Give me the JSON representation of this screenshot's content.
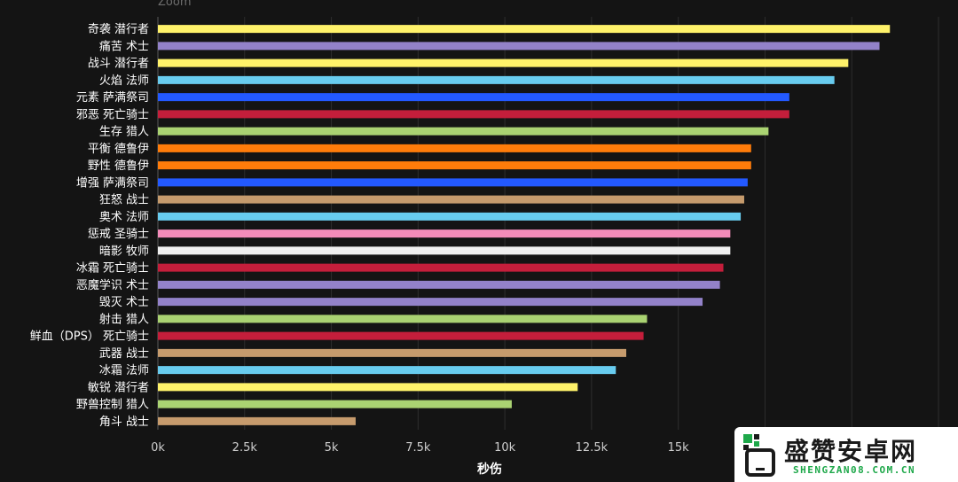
{
  "zoom_label": "Zoom",
  "watermark": {
    "title": "盛赞安卓网",
    "subtitle": "SHENGZAN08.COM.CN"
  },
  "chart_data": {
    "type": "bar",
    "orientation": "horizontal",
    "xlabel": "秒伤",
    "xlim": [
      0,
      22500
    ],
    "xticks": [
      0,
      2500,
      5000,
      7500,
      10000,
      12500,
      15000,
      17500,
      20000,
      22500
    ],
    "xtick_labels": [
      "0k",
      "2.5k",
      "5k",
      "7.5k",
      "10k",
      "12.5k",
      "15k",
      "",
      "",
      ""
    ],
    "grid": "vertical",
    "categories": [
      "奇袭 潜行者",
      "痛苦 术士",
      "战斗 潜行者",
      "火焰 法师",
      "元素 萨满祭司",
      "邪恶 死亡骑士",
      "生存 猎人",
      "平衡 德鲁伊",
      "野性 德鲁伊",
      "增强 萨满祭司",
      "狂怒 战士",
      "奥术 法师",
      "惩戒 圣骑士",
      "暗影 牧师",
      "冰霜 死亡骑士",
      "恶魔学识 术士",
      "毁灭 术士",
      "射击 猎人",
      "鲜血（DPS） 死亡骑士",
      "武器 战士",
      "冰霜 法师",
      "敏锐 潜行者",
      "野兽控制 猎人",
      "角斗 战士"
    ],
    "values": [
      21100,
      20800,
      19900,
      19500,
      18200,
      18200,
      17600,
      17100,
      17100,
      17000,
      16900,
      16800,
      16500,
      16500,
      16300,
      16200,
      15700,
      14100,
      14000,
      13500,
      13200,
      12100,
      10200,
      5700
    ],
    "colors": [
      "#fff26a",
      "#9382c9",
      "#fff26a",
      "#68ccef",
      "#2359ff",
      "#c41e3b",
      "#aad372",
      "#ff7c0a",
      "#ff7c0a",
      "#2359ff",
      "#c69b6d",
      "#68ccef",
      "#f48cba",
      "#f0f0f0",
      "#c41e3b",
      "#9382c9",
      "#9382c9",
      "#aad372",
      "#c41e3b",
      "#c69b6d",
      "#68ccef",
      "#fff26a",
      "#aad372",
      "#c69b6d"
    ]
  }
}
